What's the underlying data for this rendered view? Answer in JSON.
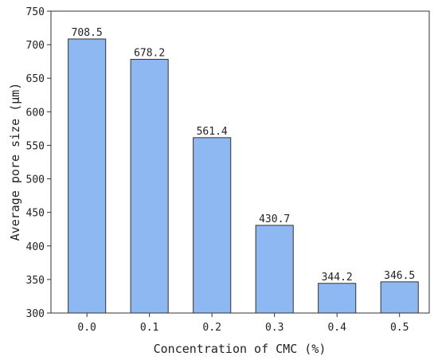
{
  "chart_data": {
    "type": "bar",
    "title": "",
    "xlabel": "Concentration of CMC (%)",
    "ylabel": "Average pore size (μm)",
    "categories": [
      "0.0",
      "0.1",
      "0.2",
      "0.3",
      "0.4",
      "0.5"
    ],
    "values": [
      708.5,
      678.2,
      561.4,
      430.7,
      344.2,
      346.5
    ],
    "data_labels": [
      "708.5",
      "678.2",
      "561.4",
      "430.7",
      "344.2",
      "346.5"
    ],
    "ylim": [
      300,
      750
    ],
    "yticks": [
      300,
      350,
      400,
      450,
      500,
      550,
      600,
      650,
      700,
      750
    ],
    "grid": false,
    "legend": "none",
    "bar_color": "#8db8f2",
    "bar_edge_color": "#333333"
  }
}
